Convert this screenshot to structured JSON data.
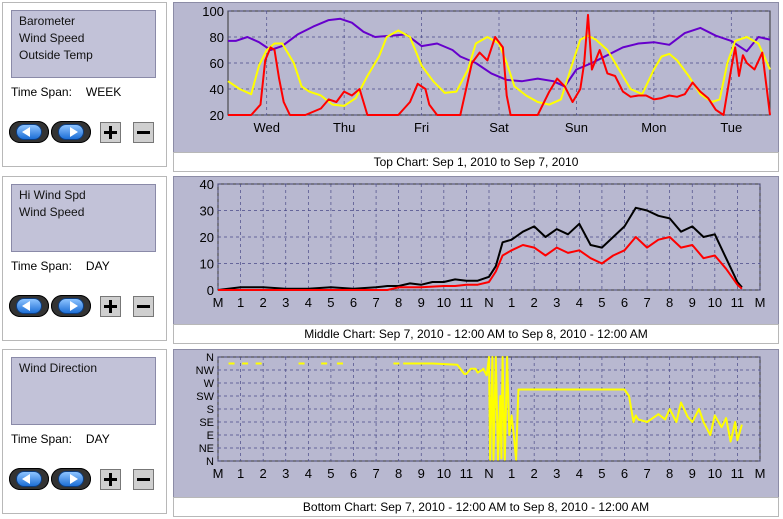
{
  "panels": [
    {
      "series_list": [
        "Barometer",
        "Wind Speed",
        "Outside Temp"
      ],
      "time_span_label": "Time Span:",
      "time_span_value": "WEEK",
      "caption": "Top Chart:  Sep 1, 2010  to  Sep 7, 2010"
    },
    {
      "series_list": [
        "Hi Wind Spd",
        "Wind Speed"
      ],
      "time_span_label": "Time Span:",
      "time_span_value": "DAY",
      "caption": "Middle Chart:  Sep 7, 2010 - 12:00 AM  to  Sep 8, 2010 - 12:00 AM"
    },
    {
      "series_list": [
        "Wind Direction"
      ],
      "time_span_label": "Time Span:",
      "time_span_value": "DAY",
      "caption": "Bottom Chart:  Sep 7, 2010 - 12:00 AM  to  Sep 8, 2010 - 12:00 AM"
    }
  ],
  "buttons": {
    "back_icon": "left-arrow-icon",
    "forward_icon": "right-arrow-icon",
    "zoom_in_label": "+",
    "zoom_out_label": "−"
  },
  "colors": {
    "plot_background": "#b8b8d0",
    "purple": "#6600cc",
    "yellow": "#ffff00",
    "red": "#ff0000",
    "black": "#000000",
    "grid": "#4a4a88"
  },
  "chart_data": [
    {
      "type": "line",
      "ylim": [
        20,
        100
      ],
      "yticks": [
        20,
        40,
        60,
        80,
        100
      ],
      "xlim": [
        0,
        7
      ],
      "xticks": [
        {
          "label": "Wed",
          "x": 0.5
        },
        {
          "label": "Thu",
          "x": 1.5
        },
        {
          "label": "Fri",
          "x": 2.5
        },
        {
          "label": "Sat",
          "x": 3.5
        },
        {
          "label": "Sun",
          "x": 4.5
        },
        {
          "label": "Mon",
          "x": 5.5
        },
        {
          "label": "Tue",
          "x": 6.5
        }
      ],
      "grid": true,
      "series": [
        {
          "color": "#6600cc",
          "x": [
            0,
            0.1,
            0.25,
            0.4,
            0.55,
            0.7,
            0.9,
            1.1,
            1.3,
            1.45,
            1.6,
            1.75,
            1.9,
            2.1,
            2.3,
            2.5,
            2.7,
            2.9,
            3.0,
            3.2,
            3.4,
            3.6,
            3.8,
            4.0,
            4.2,
            4.35,
            4.5,
            4.7,
            4.9,
            5.1,
            5.3,
            5.5,
            5.7,
            5.9,
            6.1,
            6.3,
            6.5,
            6.7,
            6.85,
            7.0
          ],
          "y": [
            77,
            77,
            80,
            76,
            70,
            73,
            82,
            88,
            93,
            94,
            91,
            84,
            80,
            81,
            82,
            73,
            75,
            70,
            65,
            60,
            52,
            47,
            46,
            48,
            46,
            42,
            55,
            60,
            66,
            72,
            75,
            76,
            74,
            83,
            87,
            81,
            77,
            69,
            80,
            78
          ]
        },
        {
          "color": "#ffff00",
          "x": [
            0,
            0.15,
            0.3,
            0.4,
            0.5,
            0.6,
            0.7,
            0.85,
            0.95,
            1.05,
            1.2,
            1.35,
            1.5,
            1.65,
            1.8,
            1.95,
            2.05,
            2.2,
            2.35,
            2.5,
            2.65,
            2.8,
            2.95,
            3.1,
            3.2,
            3.35,
            3.5,
            3.6,
            3.7,
            3.85,
            4.0,
            4.15,
            4.3,
            4.45,
            4.55,
            4.65,
            4.75,
            4.9,
            5.05,
            5.2,
            5.35,
            5.5,
            5.6,
            5.7,
            5.8,
            5.95,
            6.1,
            6.25,
            6.35,
            6.45,
            6.55,
            6.7,
            6.85,
            7.0
          ],
          "y": [
            46,
            40,
            36,
            58,
            70,
            75,
            75,
            60,
            42,
            38,
            35,
            28,
            27,
            33,
            50,
            65,
            80,
            85,
            80,
            58,
            46,
            37,
            38,
            55,
            75,
            80,
            75,
            60,
            42,
            35,
            30,
            28,
            32,
            60,
            78,
            81,
            78,
            70,
            55,
            40,
            36,
            55,
            65,
            67,
            62,
            50,
            36,
            30,
            32,
            60,
            77,
            80,
            75,
            55
          ]
        },
        {
          "color": "#ff0000",
          "x": [
            0,
            0.3,
            0.42,
            0.48,
            0.55,
            0.6,
            0.66,
            0.72,
            0.8,
            0.9,
            1.0,
            1.2,
            1.3,
            1.4,
            1.5,
            1.6,
            1.7,
            1.8,
            2.0,
            2.2,
            2.35,
            2.45,
            2.55,
            2.6,
            2.7,
            2.9,
            3.0,
            3.15,
            3.25,
            3.35,
            3.45,
            3.55,
            3.6,
            3.65,
            3.75,
            3.9,
            4.0,
            4.15,
            4.25,
            4.35,
            4.45,
            4.55,
            4.6,
            4.65,
            4.7,
            4.8,
            4.9,
            5.0,
            5.1,
            5.2,
            5.3,
            5.4,
            5.5,
            5.6,
            5.7,
            5.8,
            5.9,
            6.0,
            6.1,
            6.2,
            6.3,
            6.4,
            6.5,
            6.55,
            6.6,
            6.65,
            6.7,
            6.8,
            6.9,
            7.0
          ],
          "y": [
            20,
            20,
            28,
            62,
            72,
            70,
            48,
            30,
            20,
            20,
            20,
            25,
            32,
            30,
            38,
            35,
            40,
            20,
            20,
            20,
            30,
            44,
            40,
            28,
            20,
            20,
            20,
            60,
            68,
            62,
            80,
            72,
            35,
            20,
            20,
            20,
            20,
            38,
            48,
            42,
            30,
            40,
            60,
            97,
            55,
            70,
            52,
            50,
            38,
            34,
            35,
            35,
            32,
            33,
            35,
            34,
            36,
            45,
            38,
            33,
            24,
            20,
            56,
            72,
            50,
            66,
            60,
            55,
            68,
            20
          ]
        }
      ]
    },
    {
      "type": "line",
      "ylim": [
        0,
        40
      ],
      "yticks": [
        0,
        10,
        20,
        30,
        40
      ],
      "xlim": [
        0,
        24
      ],
      "xticks": [
        {
          "label": "M",
          "x": 0
        },
        {
          "label": "1",
          "x": 1
        },
        {
          "label": "2",
          "x": 2
        },
        {
          "label": "3",
          "x": 3
        },
        {
          "label": "4",
          "x": 4
        },
        {
          "label": "5",
          "x": 5
        },
        {
          "label": "6",
          "x": 6
        },
        {
          "label": "7",
          "x": 7
        },
        {
          "label": "8",
          "x": 8
        },
        {
          "label": "9",
          "x": 9
        },
        {
          "label": "10",
          "x": 10
        },
        {
          "label": "11",
          "x": 11
        },
        {
          "label": "N",
          "x": 12
        },
        {
          "label": "1",
          "x": 13
        },
        {
          "label": "2",
          "x": 14
        },
        {
          "label": "3",
          "x": 15
        },
        {
          "label": "4",
          "x": 16
        },
        {
          "label": "5",
          "x": 17
        },
        {
          "label": "6",
          "x": 18
        },
        {
          "label": "7",
          "x": 19
        },
        {
          "label": "8",
          "x": 20
        },
        {
          "label": "9",
          "x": 21
        },
        {
          "label": "10",
          "x": 22
        },
        {
          "label": "11",
          "x": 23
        },
        {
          "label": "M",
          "x": 24
        }
      ],
      "grid": true,
      "series": [
        {
          "color": "#000000",
          "x": [
            0.0,
            1.0,
            2.0,
            3.0,
            4.0,
            5.0,
            6.0,
            7.0,
            7.5,
            8.0,
            8.5,
            9.0,
            9.5,
            10.0,
            10.5,
            11.0,
            11.5,
            12.0,
            12.3,
            12.6,
            13.0,
            13.5,
            14.0,
            14.5,
            15.0,
            15.5,
            16.0,
            16.5,
            17.0,
            17.5,
            18.0,
            18.5,
            19.0,
            19.5,
            20.0,
            20.5,
            21.0,
            21.5,
            22.0,
            22.5,
            23.0,
            23.2
          ],
          "y": [
            0,
            1,
            1,
            0.5,
            0.5,
            1,
            0.5,
            1,
            1.5,
            1.5,
            2.5,
            2,
            3,
            3,
            4,
            3.5,
            3.5,
            5,
            9,
            18,
            19,
            22,
            24,
            20,
            23,
            21,
            25,
            17,
            16,
            20,
            24,
            31,
            30,
            28,
            27,
            22,
            24,
            20,
            21,
            12,
            3,
            1
          ]
        },
        {
          "color": "#ff0000",
          "x": [
            0.0,
            2.0,
            4.0,
            6.0,
            7.5,
            8.0,
            9.0,
            10.0,
            10.5,
            11.0,
            11.5,
            12.0,
            12.3,
            12.6,
            13.0,
            13.5,
            14.0,
            14.5,
            15.0,
            15.5,
            16.0,
            16.5,
            17.0,
            17.5,
            18.0,
            18.5,
            19.0,
            19.5,
            20.0,
            20.5,
            21.0,
            21.5,
            22.0,
            22.5,
            23.0,
            23.2
          ],
          "y": [
            0,
            0,
            0,
            0,
            0,
            1,
            1,
            1.5,
            1.5,
            2,
            2,
            3,
            7,
            13,
            15,
            17,
            16,
            13,
            16,
            14,
            15,
            12,
            10,
            13,
            15,
            20,
            16,
            19,
            20,
            16,
            17,
            12,
            13,
            8,
            2,
            0.5
          ]
        }
      ]
    },
    {
      "type": "line",
      "ylim": [
        0,
        8
      ],
      "yticks_labels": [
        "N",
        "NE",
        "E",
        "SE",
        "S",
        "SW",
        "W",
        "NW",
        "N"
      ],
      "xlim": [
        0,
        24
      ],
      "xticks": [
        {
          "label": "M",
          "x": 0
        },
        {
          "label": "1",
          "x": 1
        },
        {
          "label": "2",
          "x": 2
        },
        {
          "label": "3",
          "x": 3
        },
        {
          "label": "4",
          "x": 4
        },
        {
          "label": "5",
          "x": 5
        },
        {
          "label": "6",
          "x": 6
        },
        {
          "label": "7",
          "x": 7
        },
        {
          "label": "8",
          "x": 8
        },
        {
          "label": "9",
          "x": 9
        },
        {
          "label": "10",
          "x": 10
        },
        {
          "label": "11",
          "x": 11
        },
        {
          "label": "N",
          "x": 12
        },
        {
          "label": "1",
          "x": 13
        },
        {
          "label": "2",
          "x": 14
        },
        {
          "label": "3",
          "x": 15
        },
        {
          "label": "4",
          "x": 16
        },
        {
          "label": "5",
          "x": 17
        },
        {
          "label": "6",
          "x": 18
        },
        {
          "label": "7",
          "x": 19
        },
        {
          "label": "8",
          "x": 20
        },
        {
          "label": "9",
          "x": 21
        },
        {
          "label": "10",
          "x": 22
        },
        {
          "label": "11",
          "x": 23
        },
        {
          "label": "M",
          "x": 24
        }
      ],
      "grid": true,
      "dash_points": [
        {
          "x": 0.6,
          "y": 7.5
        },
        {
          "x": 1.2,
          "y": 7.5
        },
        {
          "x": 1.8,
          "y": 7.5
        },
        {
          "x": 3.7,
          "y": 7.5
        },
        {
          "x": 4.7,
          "y": 7.5
        },
        {
          "x": 5.4,
          "y": 7.5
        },
        {
          "x": 7.9,
          "y": 7.5
        }
      ],
      "series": [
        {
          "color": "#ffff00",
          "x": [
            8.2,
            9.5,
            10.6,
            10.9,
            11.0,
            11.2,
            11.4,
            11.5,
            11.6,
            11.7,
            11.75,
            11.8,
            11.9,
            12.0,
            12.05,
            12.15,
            12.2,
            12.3,
            12.4,
            12.5,
            12.55,
            12.6,
            12.7,
            12.8,
            12.9,
            13.0,
            13.1,
            13.2,
            13.3,
            13.5,
            14.0,
            14.5,
            15.0,
            15.5,
            16.0,
            16.5,
            17.0,
            17.5,
            18.0,
            18.2,
            18.4,
            18.5,
            18.6,
            19.0,
            19.5,
            19.8,
            20.0,
            20.3,
            20.5,
            20.8,
            21.0,
            21.3,
            21.5,
            21.8,
            22.0,
            22.3,
            22.5,
            22.7,
            22.9,
            23.0,
            23.1,
            23.2
          ],
          "y": [
            7.5,
            7.5,
            7.4,
            6.7,
            6.7,
            7.1,
            7.1,
            6.8,
            6.9,
            7.0,
            7.1,
            6.9,
            6.6,
            8.0,
            0.1,
            8.0,
            0.1,
            8.0,
            0.1,
            5.0,
            0.2,
            8.0,
            0.1,
            8.0,
            2.0,
            3.5,
            2.0,
            0.1,
            5.5,
            5.5,
            5.5,
            5.5,
            5.5,
            5.5,
            5.5,
            5.5,
            5.5,
            5.5,
            5.5,
            5.0,
            3.0,
            3.5,
            3.2,
            3.0,
            3.6,
            3.2,
            4.0,
            3.0,
            4.5,
            3.4,
            3.0,
            4.0,
            3.0,
            2.0,
            3.5,
            2.6,
            3.3,
            1.5,
            3.0,
            1.6,
            2.2,
            2.8
          ]
        }
      ]
    }
  ]
}
